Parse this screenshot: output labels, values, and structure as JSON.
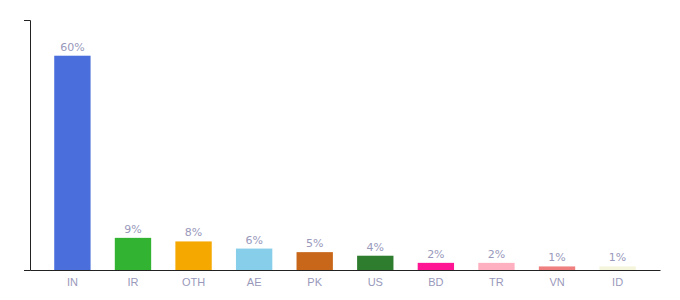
{
  "chart_data": {
    "type": "bar",
    "categories": [
      "IN",
      "IR",
      "OTH",
      "AE",
      "PK",
      "US",
      "BD",
      "TR",
      "VN",
      "ID"
    ],
    "values": [
      60,
      9,
      8,
      6,
      5,
      4,
      2,
      2,
      1,
      1
    ],
    "value_labels": [
      "60%",
      "9%",
      "8%",
      "6%",
      "5%",
      "4%",
      "2%",
      "2%",
      "1%",
      "1%"
    ],
    "colors": [
      "#4a6edb",
      "#32b432",
      "#f5a800",
      "#87ceeb",
      "#c8671a",
      "#2e7d2e",
      "#ff1493",
      "#ffb0c0",
      "#f08080",
      "#f5f5dc"
    ],
    "ylim": [
      0,
      70
    ],
    "yticks": [],
    "grid": false,
    "data_labels": true,
    "tick_labels": "x"
  }
}
